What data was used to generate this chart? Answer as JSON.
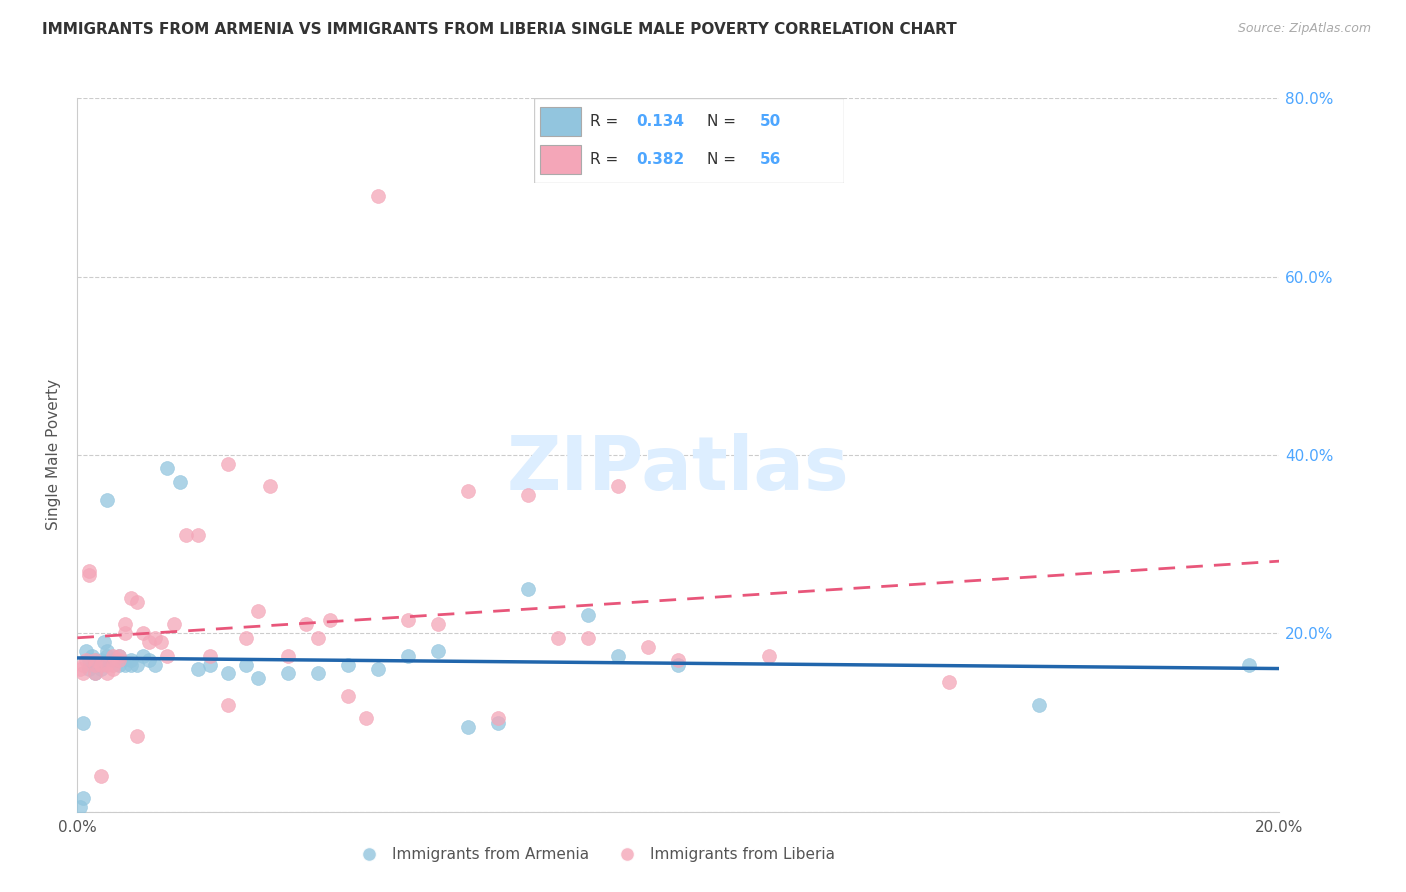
{
  "title": "IMMIGRANTS FROM ARMENIA VS IMMIGRANTS FROM LIBERIA SINGLE MALE POVERTY CORRELATION CHART",
  "source": "Source: ZipAtlas.com",
  "ylabel": "Single Male Poverty",
  "armenia_color": "#92c5de",
  "liberia_color": "#f4a6b8",
  "armenia_line_color": "#2166ac",
  "liberia_line_color": "#e8567a",
  "xmin": 0.0,
  "xmax": 0.2,
  "ymin": 0.0,
  "ymax": 0.8,
  "yticks": [
    0.0,
    0.2,
    0.4,
    0.6,
    0.8
  ],
  "ytick_labels": [
    "",
    "20.0%",
    "40.0%",
    "60.0%",
    "80.0%"
  ],
  "xticks": [
    0.0,
    0.05,
    0.1,
    0.15,
    0.2
  ],
  "xtick_labels": [
    "0.0%",
    "",
    "",
    "",
    "20.0%"
  ],
  "armenia_R": "0.134",
  "armenia_N": "50",
  "liberia_R": "0.382",
  "liberia_N": "56",
  "armenia_x": [
    0.0005,
    0.001,
    0.001,
    0.0015,
    0.002,
    0.002,
    0.0025,
    0.003,
    0.003,
    0.003,
    0.0035,
    0.004,
    0.004,
    0.004,
    0.0045,
    0.005,
    0.005,
    0.005,
    0.006,
    0.006,
    0.007,
    0.007,
    0.008,
    0.009,
    0.009,
    0.01,
    0.011,
    0.012,
    0.013,
    0.015,
    0.017,
    0.02,
    0.022,
    0.025,
    0.028,
    0.03,
    0.035,
    0.04,
    0.045,
    0.05,
    0.055,
    0.06,
    0.065,
    0.07,
    0.075,
    0.085,
    0.09,
    0.1,
    0.16,
    0.195
  ],
  "armenia_y": [
    0.005,
    0.015,
    0.1,
    0.18,
    0.17,
    0.16,
    0.175,
    0.155,
    0.165,
    0.17,
    0.165,
    0.17,
    0.165,
    0.16,
    0.19,
    0.18,
    0.175,
    0.35,
    0.17,
    0.17,
    0.165,
    0.175,
    0.165,
    0.165,
    0.17,
    0.165,
    0.175,
    0.17,
    0.165,
    0.385,
    0.37,
    0.16,
    0.165,
    0.155,
    0.165,
    0.15,
    0.155,
    0.155,
    0.165,
    0.16,
    0.175,
    0.18,
    0.095,
    0.1,
    0.25,
    0.22,
    0.175,
    0.165,
    0.12,
    0.165
  ],
  "liberia_x": [
    0.0005,
    0.001,
    0.001,
    0.0015,
    0.002,
    0.002,
    0.003,
    0.003,
    0.003,
    0.004,
    0.004,
    0.005,
    0.005,
    0.006,
    0.006,
    0.006,
    0.007,
    0.007,
    0.008,
    0.008,
    0.009,
    0.01,
    0.01,
    0.011,
    0.012,
    0.013,
    0.014,
    0.015,
    0.016,
    0.018,
    0.02,
    0.022,
    0.025,
    0.025,
    0.028,
    0.03,
    0.032,
    0.035,
    0.038,
    0.04,
    0.042,
    0.045,
    0.048,
    0.05,
    0.055,
    0.06,
    0.065,
    0.07,
    0.075,
    0.08,
    0.085,
    0.09,
    0.095,
    0.1,
    0.115,
    0.145
  ],
  "liberia_y": [
    0.16,
    0.155,
    0.165,
    0.17,
    0.265,
    0.27,
    0.165,
    0.17,
    0.155,
    0.165,
    0.04,
    0.165,
    0.155,
    0.16,
    0.175,
    0.165,
    0.175,
    0.17,
    0.2,
    0.21,
    0.24,
    0.235,
    0.085,
    0.2,
    0.19,
    0.195,
    0.19,
    0.175,
    0.21,
    0.31,
    0.31,
    0.175,
    0.39,
    0.12,
    0.195,
    0.225,
    0.365,
    0.175,
    0.21,
    0.195,
    0.215,
    0.13,
    0.105,
    0.69,
    0.215,
    0.21,
    0.36,
    0.105,
    0.355,
    0.195,
    0.195,
    0.365,
    0.185,
    0.17,
    0.175,
    0.145
  ]
}
